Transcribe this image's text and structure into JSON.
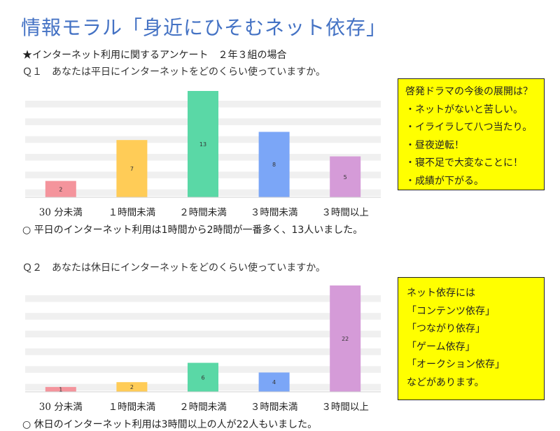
{
  "title": "情報モラル「身近にひそむネット依存」",
  "survey_label": "★インターネット利用に関するアンケート　２年３組の場合",
  "q1": {
    "question": "Ｑ１　あなたは平日にインターネットをどのくらい使っていますか。",
    "conclusion": "○  平日のインターネット利用は1時間から2時間が一番多く、13人いました。"
  },
  "q2": {
    "question": "Ｑ２　あなたは休日にインターネットをどのくらい使っていますか。",
    "conclusion": "○  休日のインターネット利用は3時間以上の人が22人もいました。"
  },
  "note1": {
    "lines": [
      "啓発ドラマの今後の展開は？",
      "・ネットがないと苦しい。",
      "・イライラして八つ当たり。",
      "・昼夜逆転！",
      "・寝不足で大変なことに！",
      "・成績が下がる。"
    ],
    "background": "#ffff00"
  },
  "note2": {
    "lines": [
      "ネット依存には",
      "「コンテンツ依存」",
      "「つながり依存」",
      "「ゲーム依存」",
      "「オークション依存」",
      "などがあります。"
    ],
    "background": "#ffff00"
  },
  "chart_data": [
    {
      "type": "bar",
      "categories": [
        "30 分未満",
        "１時間未満",
        "２時間未満",
        "３時間未満",
        "３時間以上"
      ],
      "values": [
        2,
        7,
        13,
        8,
        5
      ],
      "colors": [
        "#f4949c",
        "#ffcc57",
        "#5ad8a6",
        "#7ba6f7",
        "#d59bd8"
      ],
      "ylim": [
        0,
        13
      ],
      "grid": true,
      "data_labels": true
    },
    {
      "type": "bar",
      "categories": [
        "30 分未満",
        "１時間未満",
        "２時間未満",
        "３時間未満",
        "３時間以上"
      ],
      "values": [
        1,
        2,
        6,
        4,
        22
      ],
      "colors": [
        "#f4949c",
        "#ffcc57",
        "#5ad8a6",
        "#7ba6f7",
        "#d59bd8"
      ],
      "ylim": [
        0,
        22
      ],
      "grid": true,
      "data_labels": true
    }
  ]
}
